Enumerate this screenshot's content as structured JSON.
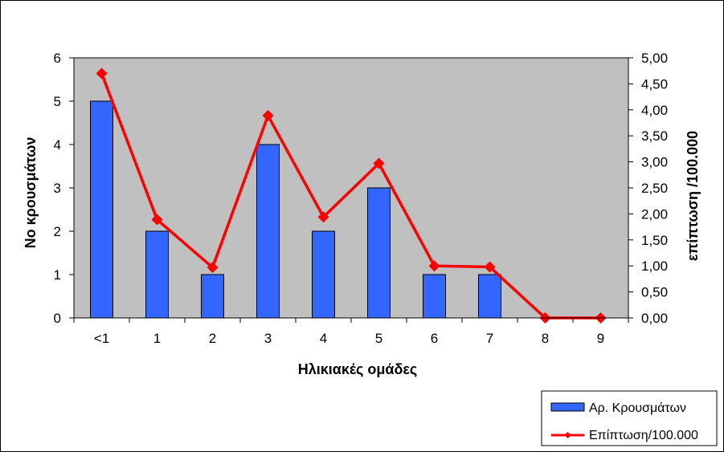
{
  "chart_data": {
    "type": "bar",
    "categories": [
      "<1",
      "1",
      "2",
      "3",
      "4",
      "5",
      "6",
      "7",
      "8",
      "9"
    ],
    "xlabel": "Ηλικιακές ομάδες",
    "ylabel": "Νο κρουσμάτων",
    "y2label": "επίπτωση /100.000",
    "ylim": [
      0,
      6
    ],
    "y2lim": [
      0,
      5
    ],
    "yticks": [
      "0",
      "1",
      "2",
      "3",
      "4",
      "5",
      "6"
    ],
    "y2ticks": [
      "0,00",
      "0,50",
      "1,00",
      "1,50",
      "2,00",
      "2,50",
      "3,00",
      "3,50",
      "4,00",
      "4,50",
      "5,00"
    ],
    "series": [
      {
        "name": "Αρ. Κρουσμάτων",
        "type": "bar",
        "axis": "left",
        "color": "#3366ff",
        "values": [
          5,
          2,
          1,
          4,
          2,
          3,
          1,
          1,
          0,
          0
        ]
      },
      {
        "name": "Επίπτωση/100.000",
        "type": "line",
        "axis": "right",
        "color": "#ff0000",
        "values": [
          4.7,
          1.89,
          0.97,
          3.89,
          1.94,
          2.97,
          1.0,
          0.98,
          0.0,
          0.0
        ]
      }
    ],
    "plot_background": "#c0c0c0",
    "grid": false,
    "legend_position": "bottom-right"
  }
}
